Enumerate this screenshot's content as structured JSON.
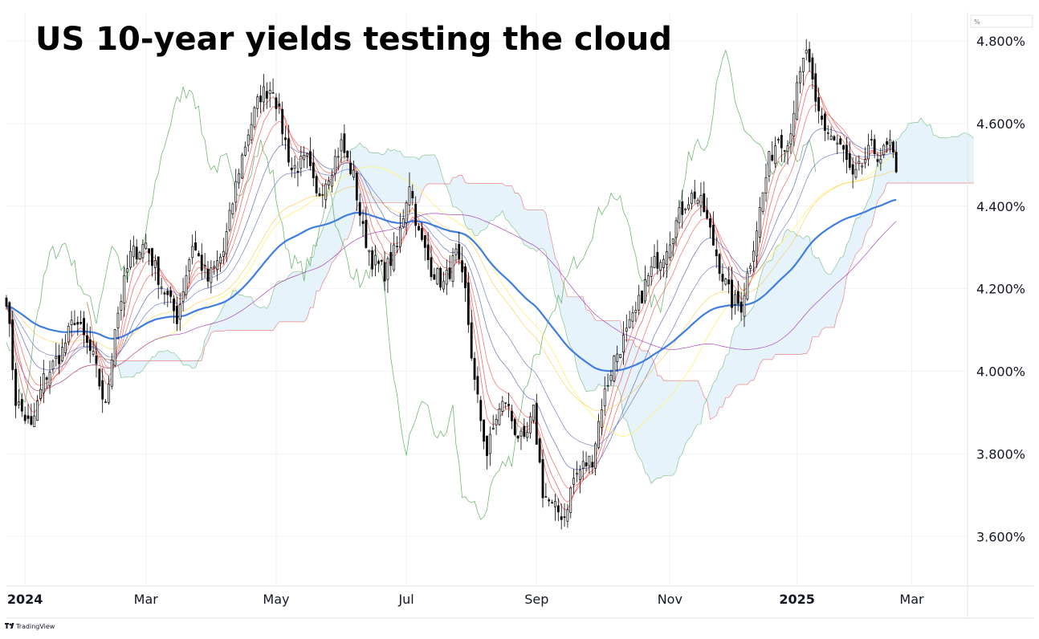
{
  "chart_data": {
    "type": "candlestick",
    "title": "US 10-year yields testing the cloud",
    "price_unit_label": "%",
    "x_ticks": [
      {
        "label": "2024",
        "bold": true,
        "idx": 6
      },
      {
        "label": "Mar",
        "bold": false,
        "idx": 45
      },
      {
        "label": "May",
        "bold": false,
        "idx": 87
      },
      {
        "label": "Jul",
        "bold": false,
        "idx": 129
      },
      {
        "label": "Sep",
        "bold": false,
        "idx": 171
      },
      {
        "label": "Nov",
        "bold": false,
        "idx": 214
      },
      {
        "label": "2025",
        "bold": true,
        "idx": 255
      },
      {
        "label": "Mar",
        "bold": false,
        "idx": 292
      }
    ],
    "y_ticks": [
      "4.800%",
      "4.600%",
      "4.400%",
      "4.200%",
      "4.000%",
      "3.800%",
      "3.600%"
    ],
    "ylim": [
      3.48,
      4.87
    ],
    "x_range_bars": [
      0,
      310
    ],
    "grid": true,
    "cloud_projection_bars": 26,
    "close_anchors": [
      [
        0,
        4.18
      ],
      [
        3,
        3.93
      ],
      [
        8,
        3.86
      ],
      [
        12,
        3.98
      ],
      [
        18,
        4.05
      ],
      [
        22,
        4.13
      ],
      [
        28,
        4.03
      ],
      [
        32,
        3.91
      ],
      [
        35,
        4.11
      ],
      [
        40,
        4.28
      ],
      [
        45,
        4.31
      ],
      [
        50,
        4.21
      ],
      [
        55,
        4.13
      ],
      [
        60,
        4.31
      ],
      [
        65,
        4.22
      ],
      [
        70,
        4.29
      ],
      [
        75,
        4.49
      ],
      [
        78,
        4.58
      ],
      [
        82,
        4.67
      ],
      [
        86,
        4.69
      ],
      [
        88,
        4.62
      ],
      [
        92,
        4.49
      ],
      [
        97,
        4.51
      ],
      [
        100,
        4.42
      ],
      [
        104,
        4.48
      ],
      [
        108,
        4.55
      ],
      [
        112,
        4.47
      ],
      [
        115,
        4.34
      ],
      [
        118,
        4.27
      ],
      [
        122,
        4.24
      ],
      [
        126,
        4.3
      ],
      [
        130,
        4.46
      ],
      [
        133,
        4.33
      ],
      [
        137,
        4.25
      ],
      [
        141,
        4.21
      ],
      [
        145,
        4.28
      ],
      [
        148,
        4.19
      ],
      [
        151,
        3.97
      ],
      [
        155,
        3.8
      ],
      [
        158,
        3.89
      ],
      [
        161,
        3.93
      ],
      [
        164,
        3.86
      ],
      [
        167,
        3.82
      ],
      [
        170,
        3.9
      ],
      [
        173,
        3.71
      ],
      [
        176,
        3.67
      ],
      [
        180,
        3.65
      ],
      [
        183,
        3.74
      ],
      [
        186,
        3.77
      ],
      [
        189,
        3.79
      ],
      [
        192,
        3.92
      ],
      [
        196,
        4.03
      ],
      [
        200,
        4.09
      ],
      [
        203,
        4.14
      ],
      [
        206,
        4.21
      ],
      [
        209,
        4.26
      ],
      [
        212,
        4.29
      ],
      [
        216,
        4.36
      ],
      [
        219,
        4.41
      ],
      [
        222,
        4.43
      ],
      [
        225,
        4.39
      ],
      [
        228,
        4.31
      ],
      [
        231,
        4.23
      ],
      [
        234,
        4.17
      ],
      [
        237,
        4.16
      ],
      [
        240,
        4.27
      ],
      [
        243,
        4.39
      ],
      [
        246,
        4.51
      ],
      [
        249,
        4.57
      ],
      [
        252,
        4.55
      ],
      [
        255,
        4.68
      ],
      [
        258,
        4.78
      ],
      [
        261,
        4.64
      ],
      [
        264,
        4.59
      ],
      [
        267,
        4.56
      ],
      [
        270,
        4.53
      ],
      [
        273,
        4.46
      ],
      [
        276,
        4.5
      ],
      [
        279,
        4.54
      ],
      [
        282,
        4.52
      ],
      [
        285,
        4.55
      ],
      [
        287,
        4.47
      ]
    ]
  },
  "footer": {
    "logo_text": "TradingView"
  }
}
